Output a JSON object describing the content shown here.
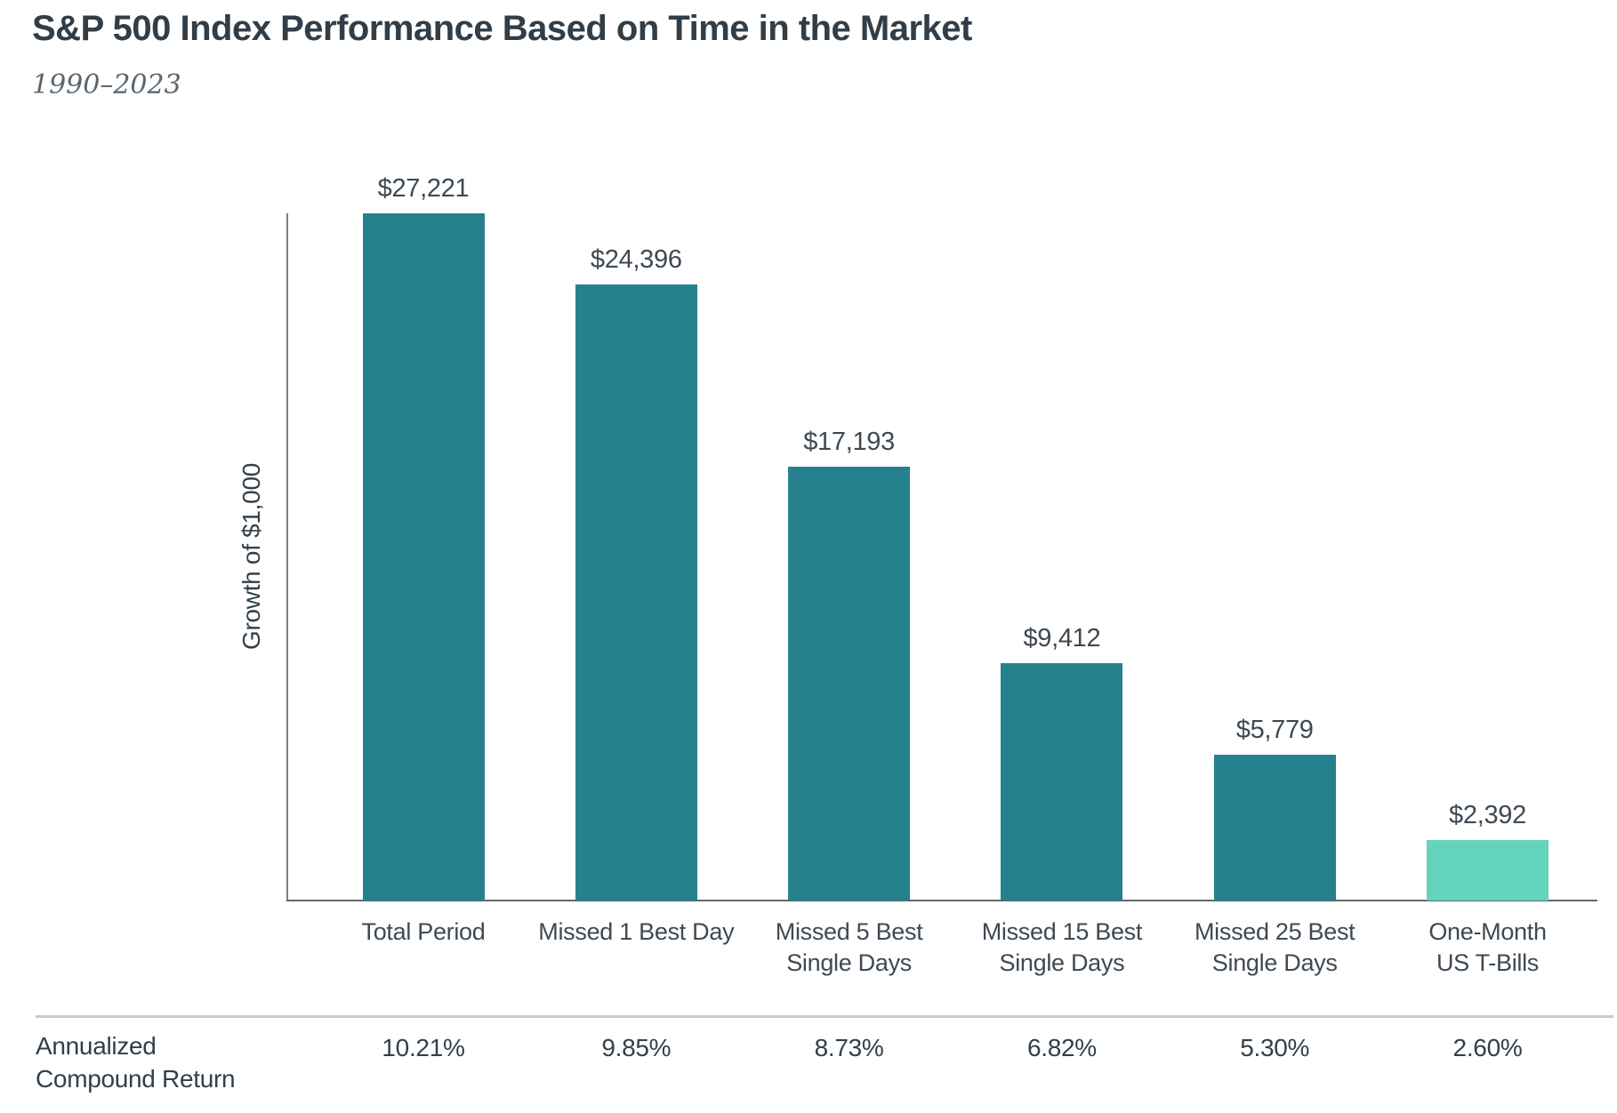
{
  "header": {
    "title": "S&P 500 Index Performance Based on Time in the Market",
    "subtitle": "1990–2023"
  },
  "chart_data": {
    "type": "bar",
    "title": "S&P 500 Index Performance Based on Time in the Market",
    "subtitle": "1990–2023",
    "xlabel": "",
    "ylabel": "Growth of $1,000",
    "ylim": [
      0,
      27221
    ],
    "grid": false,
    "legend_position": "none",
    "categories": [
      "Total Period",
      "Missed 1 Best Day",
      "Missed 5 Best Single Days",
      "Missed 15 Best Single Days",
      "Missed 25 Best Single Days",
      "One-Month US T-Bills"
    ],
    "category_lines": [
      [
        "Total Period"
      ],
      [
        "Missed 1 Best Day"
      ],
      [
        "Missed 5 Best",
        "Single Days"
      ],
      [
        "Missed 15 Best",
        "Single Days"
      ],
      [
        "Missed 25 Best",
        "Single Days"
      ],
      [
        "One-Month",
        "US T-Bills"
      ]
    ],
    "values": [
      27221,
      24396,
      17193,
      9412,
      5779,
      2392
    ],
    "value_labels": [
      "$27,221",
      "$24,396",
      "$17,193",
      "$9,412",
      "$5,779",
      "$2,392"
    ],
    "bar_colors": [
      "#26818F",
      "#26818F",
      "#26818F",
      "#26818F",
      "#26818F",
      "#64D3BB"
    ],
    "annualized_compound_returns": [
      "10.21%",
      "9.85%",
      "8.73%",
      "6.82%",
      "5.30%",
      "2.60%"
    ]
  },
  "returns_row": {
    "label_line1": "Annualized",
    "label_line2": "Compound Return"
  },
  "colors": {
    "teal": "#26818F",
    "mint": "#64D3BB",
    "title_text": "#313d47",
    "body_text": "#3e4953",
    "subtitle_text": "#5c6670",
    "axis": "#64686b",
    "divider": "#c7cccf"
  }
}
